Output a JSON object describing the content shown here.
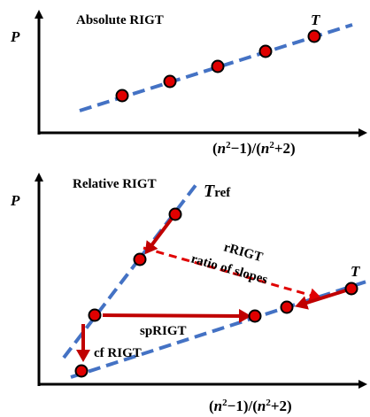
{
  "top_panel": {
    "title": "Absolute RIGT",
    "y_axis_label": "P",
    "point_label": "T",
    "x_axis_label": {
      "part1": "(",
      "n1": "n",
      "exp1": "2",
      "part2": "−1)/(",
      "n2": "n",
      "exp2": "2",
      "part3": "+2)"
    }
  },
  "bottom_panel": {
    "title": "Relative RIGT",
    "y_axis_label": "P",
    "ref_label": {
      "main": "T",
      "sub": "ref"
    },
    "point_label": "T",
    "rrigt_label": "rRIGT",
    "ratio_label": "ratio of slopes",
    "sprigt_label": "spRIGT",
    "cfrigt_label": "cf RIGT",
    "x_axis_label": {
      "part1": "(",
      "n1": "n",
      "exp1": "2",
      "part2": "−1)/(",
      "n2": "n",
      "exp2": "2",
      "part3": "+2)"
    }
  },
  "colors": {
    "axis": "#000000",
    "fit_line": "#4472C4",
    "point_fill": "#E00000",
    "arrow": "#C00000",
    "dashed_arrow": "#E00000"
  }
}
